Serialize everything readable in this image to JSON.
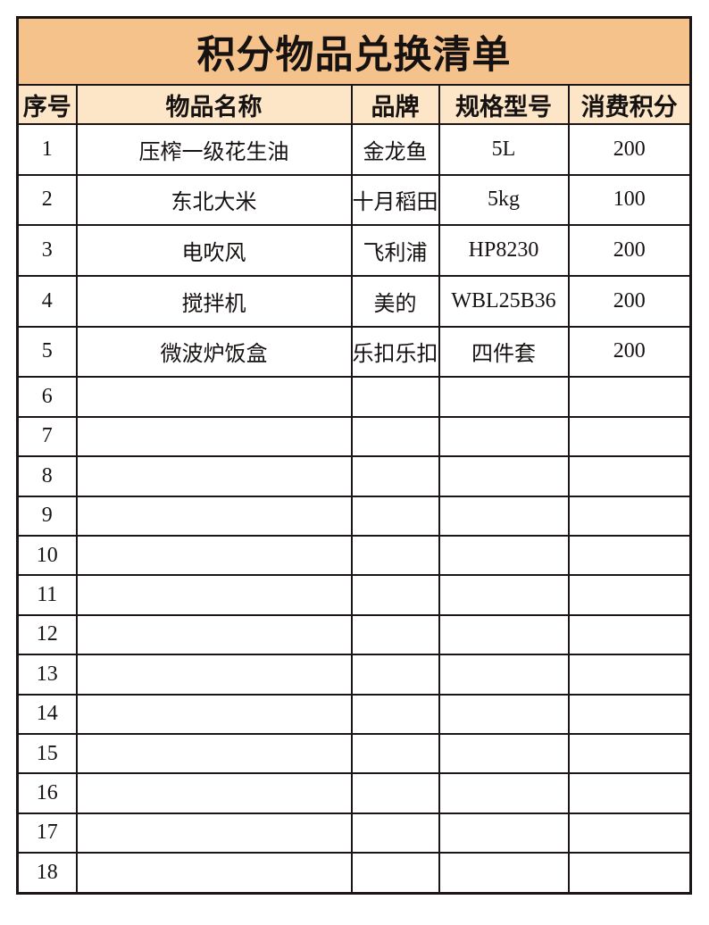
{
  "title": "积分物品兑换清单",
  "colors": {
    "title_bg": "#f6c28c",
    "header_bg": "#fce6c7",
    "border": "#1b1615",
    "text": "#161211",
    "row_bg": "#ffffff"
  },
  "table": {
    "columns": [
      "序号",
      "物品名称",
      "品牌",
      "规格型号",
      "消费积分"
    ],
    "rows": [
      [
        "1",
        "压榨一级花生油",
        "金龙鱼",
        "5L",
        "200"
      ],
      [
        "2",
        "东北大米",
        "十月稻田",
        "5kg",
        "100"
      ],
      [
        "3",
        "电吹风",
        "飞利浦",
        "HP8230",
        "200"
      ],
      [
        "4",
        "搅拌机",
        "美的",
        "WBL25B36",
        "200"
      ],
      [
        "5",
        "微波炉饭盒",
        "乐扣乐扣",
        "四件套",
        "200"
      ],
      [
        "6",
        "",
        "",
        "",
        ""
      ],
      [
        "7",
        "",
        "",
        "",
        ""
      ],
      [
        "8",
        "",
        "",
        "",
        ""
      ],
      [
        "9",
        "",
        "",
        "",
        ""
      ],
      [
        "10",
        "",
        "",
        "",
        ""
      ],
      [
        "11",
        "",
        "",
        "",
        ""
      ],
      [
        "12",
        "",
        "",
        "",
        ""
      ],
      [
        "13",
        "",
        "",
        "",
        ""
      ],
      [
        "14",
        "",
        "",
        "",
        ""
      ],
      [
        "15",
        "",
        "",
        "",
        ""
      ],
      [
        "16",
        "",
        "",
        "",
        ""
      ],
      [
        "17",
        "",
        "",
        "",
        ""
      ],
      [
        "18",
        "",
        "",
        "",
        ""
      ]
    ]
  }
}
